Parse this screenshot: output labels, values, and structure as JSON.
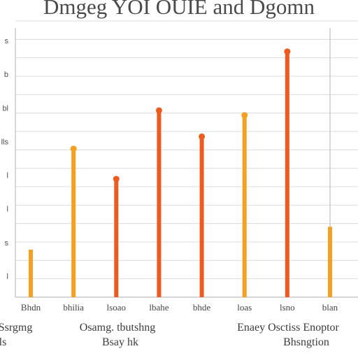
{
  "chart_data": {
    "type": "bar",
    "title": "Dmgeg YOI OUIE and Dgomn",
    "categories": [
      "Bhdn",
      "bhilia",
      "lsoao",
      "lbahe",
      "bhde",
      "loas",
      "lsno",
      "blan"
    ],
    "y_tick_labels": [
      "s",
      "b",
      "bl",
      "lls",
      "l",
      "l",
      "s",
      "l"
    ],
    "values": [
      1.29,
      4.03,
      3.21,
      5.07,
      4.36,
      4.94,
      6.67,
      1.91
    ],
    "ylim": [
      0,
      7.5
    ],
    "grid": true,
    "legend": "none",
    "annotations": [
      {
        "text": "Ssrgmg"
      },
      {
        "text": "ls"
      },
      {
        "text": "Osamg. tbutshng"
      },
      {
        "text": "Bsay hk"
      },
      {
        "text": "Enaey Osctiss Enoptor"
      },
      {
        "text": "Bhsngtion"
      }
    ],
    "colors": {
      "orange": "#f6a021",
      "red": "#ee5b1f",
      "grid": "#dcdcdc",
      "axis": "#bdbdbd"
    },
    "bar_colors": [
      "orange",
      "orange",
      "red",
      "red",
      "red",
      "orange",
      "red",
      "orange"
    ],
    "top_marker": [
      false,
      true,
      true,
      true,
      true,
      true,
      true,
      false
    ]
  }
}
